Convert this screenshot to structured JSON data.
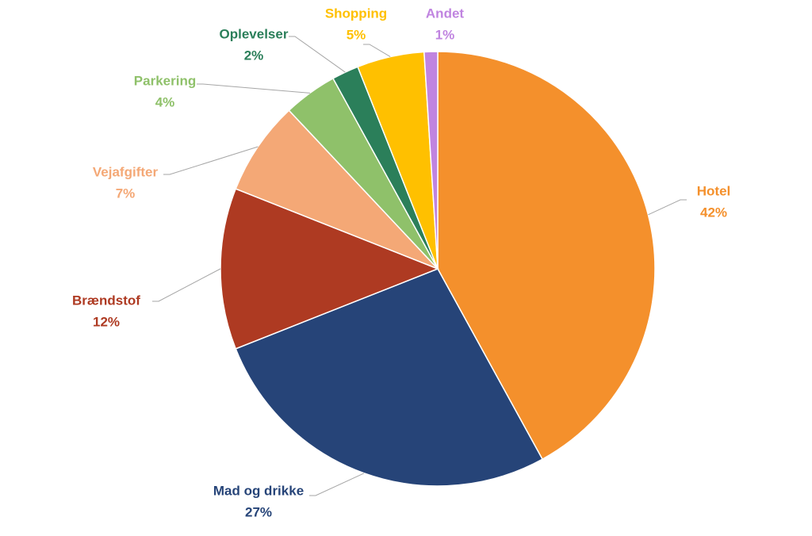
{
  "chart_data": {
    "type": "pie",
    "categories": [
      "Hotel",
      "Mad og drikke",
      "Brændstof",
      "Vejafgifter",
      "Parkering",
      "Oplevelser",
      "Shopping",
      "Andet"
    ],
    "values": [
      42,
      27,
      12,
      7,
      4,
      2,
      5,
      1
    ],
    "value_labels": [
      "42%",
      "27%",
      "12%",
      "7%",
      "4%",
      "2%",
      "5%",
      "1%"
    ],
    "colors": [
      "#f4902c",
      "#264478",
      "#ae3a22",
      "#f4a876",
      "#8fc16a",
      "#2b7f5a",
      "#ffc000",
      "#c084e0"
    ]
  }
}
